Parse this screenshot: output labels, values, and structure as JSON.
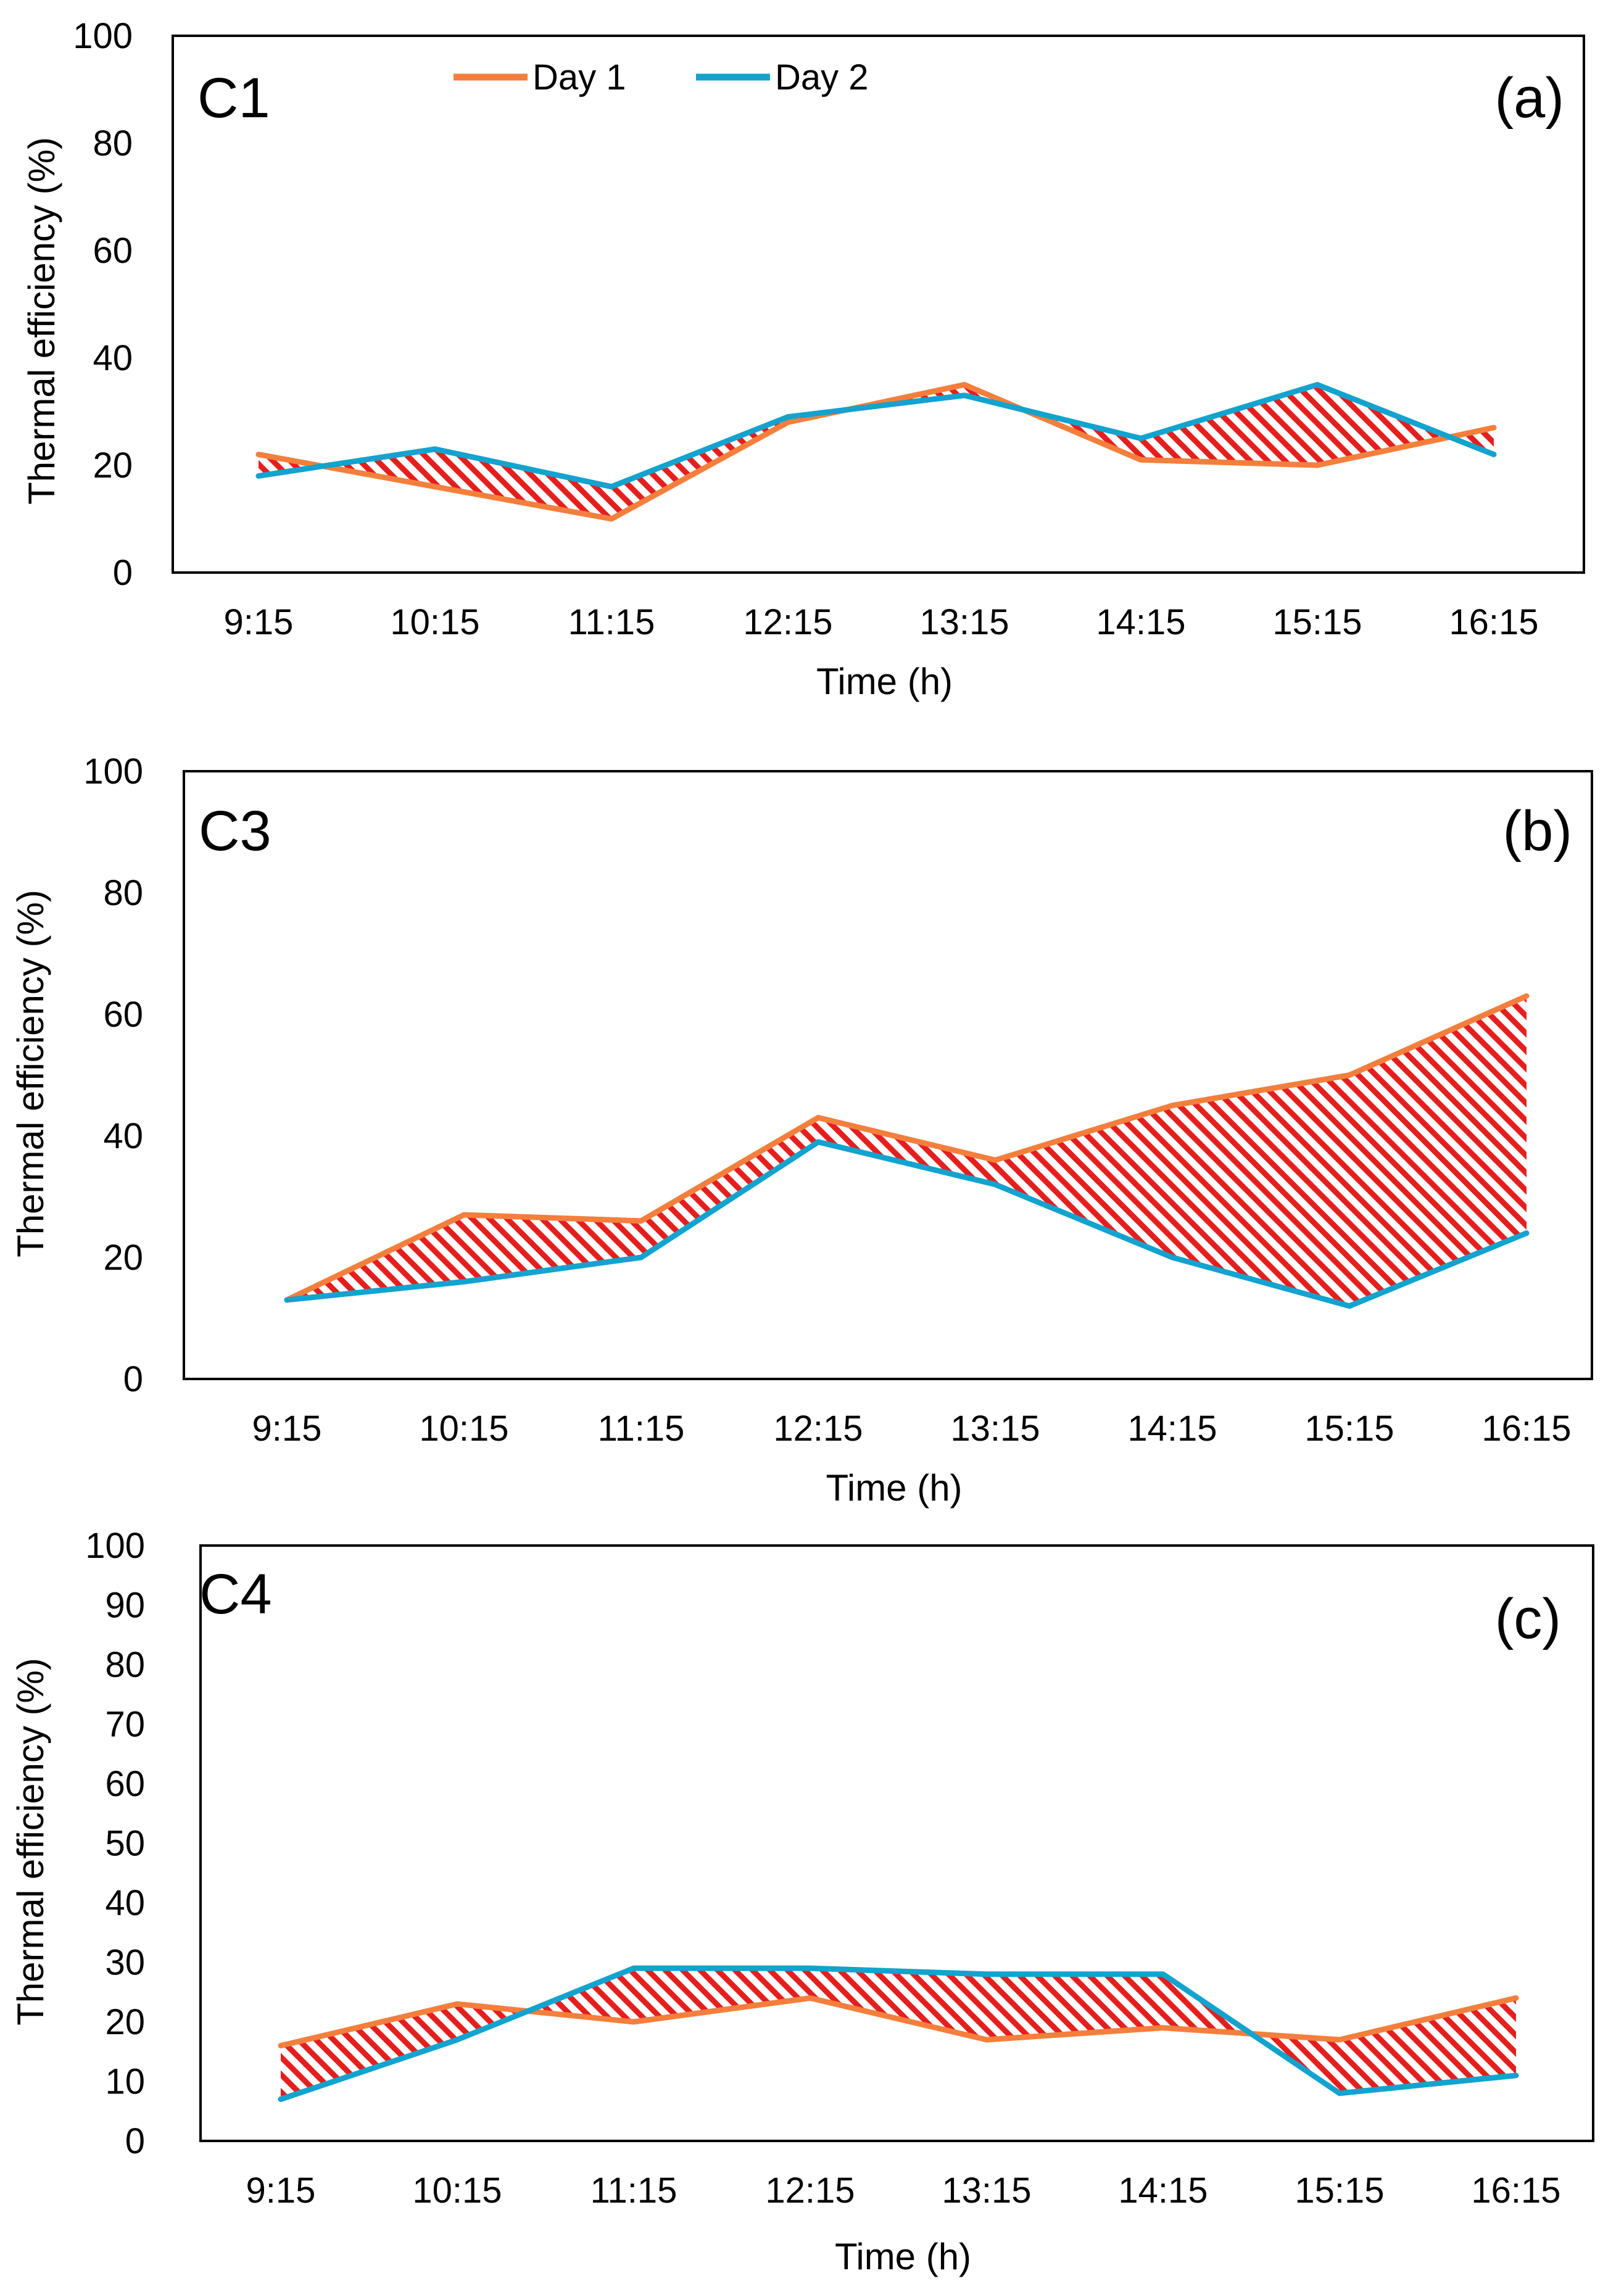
{
  "colors": {
    "day1": "#F47F3C",
    "day2": "#12A3CE",
    "hatch": "#E51E1E",
    "frame": "#000000"
  },
  "legend": {
    "placement": "top-center",
    "items": [
      "Day 1",
      "Day 2"
    ]
  },
  "chart_data": [
    {
      "type": "line",
      "panel_id": "C1",
      "panel_tag": "(a)",
      "xlabel": "Time (h)",
      "ylabel": "Thermal efficiency (%)",
      "ylim": [
        0,
        100
      ],
      "yticks": [
        0,
        20,
        40,
        60,
        80,
        100
      ],
      "categories": [
        "9:15",
        "10:15",
        "11:15",
        "12:15",
        "13:15",
        "14:15",
        "15:15",
        "16:15"
      ],
      "series": [
        {
          "name": "Day 1",
          "values": [
            22,
            16,
            10,
            28,
            35,
            21,
            20,
            27
          ]
        },
        {
          "name": "Day 2",
          "values": [
            18,
            23,
            16,
            29,
            33,
            25,
            35,
            22
          ]
        }
      ],
      "fill_between": "hatched",
      "legend": true,
      "grid": false
    },
    {
      "type": "line",
      "panel_id": "C3",
      "panel_tag": "(b)",
      "xlabel": "Time (h)",
      "ylabel": "Thermal efficiency (%)",
      "ylim": [
        0,
        100
      ],
      "yticks": [
        0,
        20,
        40,
        60,
        80,
        100
      ],
      "categories": [
        "9:15",
        "10:15",
        "11:15",
        "12:15",
        "13:15",
        "14:15",
        "15:15",
        "16:15"
      ],
      "series": [
        {
          "name": "Day 1",
          "values": [
            13,
            27,
            26,
            43,
            36,
            45,
            50,
            63
          ]
        },
        {
          "name": "Day 2",
          "values": [
            13,
            16,
            20,
            39,
            32,
            20,
            12,
            24
          ]
        }
      ],
      "fill_between": "hatched",
      "legend": false,
      "grid": false
    },
    {
      "type": "line",
      "panel_id": "C4",
      "panel_tag": "(c)",
      "xlabel": "Time (h)",
      "ylabel": "Thermal efficiency (%)",
      "ylim": [
        0,
        100
      ],
      "yticks": [
        0,
        10,
        20,
        30,
        40,
        50,
        60,
        70,
        80,
        90,
        100
      ],
      "categories": [
        "9:15",
        "10:15",
        "11:15",
        "12:15",
        "13:15",
        "14:15",
        "15:15",
        "16:15"
      ],
      "series": [
        {
          "name": "Day 1",
          "values": [
            16,
            23,
            20,
            24,
            17,
            19,
            17,
            24
          ]
        },
        {
          "name": "Day 2",
          "values": [
            7,
            17,
            29,
            29,
            28,
            28,
            8,
            11
          ]
        }
      ],
      "fill_between": "hatched",
      "legend": false,
      "grid": false
    }
  ]
}
